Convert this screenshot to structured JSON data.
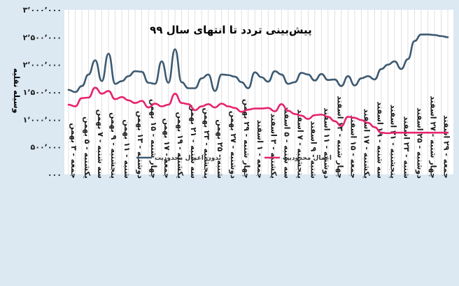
{
  "chart_data": {
    "type": "line",
    "title": "پیش‌بینی تردد تا انتهای سال ۹۹",
    "ylabel": "وسیله نقلیه",
    "xlabel": "",
    "ylim": [
      0,
      3000000
    ],
    "yticks": [
      0,
      500000,
      1000000,
      1500000,
      2000000,
      2500000,
      3000000
    ],
    "ytick_labels": [
      "۰۰۰",
      "۵۰۰٬۰۰۰",
      "۱٬۰۰۰٬۰۰۰",
      "۱٬۵۰۰٬۰۰۰",
      "۲٬۰۰۰٬۰۰۰",
      "۲٬۵۰۰٬۰۰۰",
      "۳٬۰۰۰٬۰۰۰"
    ],
    "grid": "vertical",
    "legend_position": "bottom-center",
    "categories": [
      "جمعه - ۳ بهمن",
      "یکشنبه - ۵ بهمن",
      "سه شنبه - ۷ بهمن",
      "پنجشنبه - ۹ بهمن",
      "شنبه - ۱۱ بهمن",
      "دوشنبه - ۱۳ بهمن",
      "چهار شنبه - ۱۵ بهمن",
      "جمعه - ۱۷ بهمن",
      "یکشنبه - ۱۹ بهمن",
      "سه شنبه - ۲۱ بهمن",
      "پنجشنبه - ۲۳ بهمن",
      "شنبه - ۲۵ بهمن",
      "دوشنبه - ۲۷ بهمن",
      "چهار شنبه - ۲۹ بهمن",
      "جمعه - ۱ اسفند",
      "یکشنبه - ۳ اسفند",
      "سه شنبه - ۵ اسفند",
      "پنجشنبه - ۷ اسفند",
      "شنبه - ۹ اسفند",
      "دوشنبه - ۱۱ اسفند",
      "چهار شنبه - ۱۳ اسفند",
      "جمعه - ۱۵ اسفند",
      "یکشنبه - ۱۷ اسفند",
      "سه شنبه - ۱۹ اسفند",
      "پنجشنبه - ۲۱ اسفند",
      "شنبه - ۲۳ اسفند",
      "دوشنبه - ۲۵ اسفند",
      "چهار شنبه - ۲۷ اسفند",
      "جمعه - ۲۹ اسفند"
    ],
    "x": [
      0,
      0.5,
      1,
      1.5,
      2,
      2.5,
      3,
      3.5,
      4,
      4.5,
      5,
      5.5,
      6,
      6.5,
      7,
      7.5,
      8,
      8.5,
      9,
      9.5,
      10,
      10.5,
      11,
      11.5,
      12,
      12.5,
      13,
      13.5,
      14,
      14.5,
      15,
      15.5,
      16,
      16.5,
      17,
      17.5,
      18,
      18.5,
      19,
      19.5,
      20,
      20.5,
      21,
      21.5,
      22,
      22.5,
      23,
      23.5,
      24,
      24.5,
      25,
      25.5,
      26,
      26.5,
      27,
      27.5,
      28,
      28.5
    ],
    "series": [
      {
        "name": "بدون اعمال محدودیت",
        "color": "#3d5a72",
        "values": [
          1540000,
          1500000,
          1610000,
          1820000,
          2080000,
          1700000,
          2200000,
          1650000,
          1700000,
          1790000,
          1880000,
          1870000,
          1670000,
          1650000,
          2060000,
          1670000,
          2280000,
          1680000,
          1570000,
          1570000,
          1750000,
          1820000,
          1520000,
          1820000,
          1810000,
          1780000,
          1680000,
          1570000,
          1860000,
          1770000,
          1690000,
          1880000,
          1820000,
          1650000,
          1680000,
          1850000,
          1820000,
          1710000,
          1830000,
          1720000,
          1730000,
          1610000,
          1790000,
          1620000,
          1750000,
          1790000,
          1730000,
          1920000,
          2000000,
          2060000,
          1920000,
          2100000,
          2430000,
          2550000,
          2550000,
          2540000,
          2520000,
          2500000
        ]
      },
      {
        "name": "اعمال محدودیت",
        "color": "#e6246e",
        "values": [
          1270000,
          1240000,
          1390000,
          1400000,
          1580000,
          1470000,
          1520000,
          1370000,
          1410000,
          1350000,
          1300000,
          1340000,
          1220000,
          1290000,
          1240000,
          1270000,
          1470000,
          1300000,
          1280000,
          1170000,
          1240000,
          1280000,
          1220000,
          1290000,
          1240000,
          1210000,
          1140000,
          1180000,
          1200000,
          1200000,
          1210000,
          1150000,
          1280000,
          1160000,
          1100000,
          1070000,
          1010000,
          1080000,
          1090000,
          1050000,
          970000,
          880000,
          1050000,
          1030000,
          990000,
          940000,
          860000,
          760000,
          750000,
          760000,
          760000,
          760000,
          760000,
          760000,
          760000,
          760000,
          760000,
          760000
        ]
      }
    ]
  }
}
